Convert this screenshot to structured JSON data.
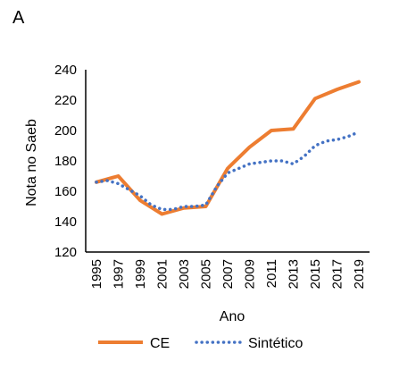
{
  "panel_label": "A",
  "chart_data": {
    "type": "line",
    "xlabel": "Ano",
    "ylabel": "Nota no Saeb",
    "ylim": [
      120,
      240
    ],
    "yticks": [
      120,
      140,
      160,
      180,
      200,
      220,
      240
    ],
    "xlim": [
      1995,
      2019
    ],
    "xticks": [
      "1995",
      "1997",
      "1999",
      "2001",
      "2003",
      "2005",
      "2007",
      "2009",
      "2011",
      "2013",
      "2015",
      "2017",
      "2019"
    ],
    "grid": false,
    "legend_position": "bottom",
    "series": [
      {
        "name": "CE",
        "color": "#ED7D31",
        "style": "solid",
        "x": [
          1995,
          1997,
          1999,
          2001,
          2003,
          2005,
          2007,
          2009,
          2011,
          2013,
          2015,
          2017,
          2019
        ],
        "y": [
          166,
          170,
          154,
          145,
          149,
          150,
          175,
          189,
          200,
          201,
          221,
          227,
          232
        ]
      },
      {
        "name": "Sintético",
        "color": "#4472C4",
        "style": "dotted",
        "x": [
          1995,
          1996,
          1997,
          1998,
          1999,
          2000,
          2001,
          2002,
          2003,
          2004,
          2005,
          2006,
          2007,
          2008,
          2009,
          2010,
          2011,
          2012,
          2013,
          2014,
          2015,
          2016,
          2017,
          2018,
          2019
        ],
        "y": [
          166,
          167,
          165,
          161,
          157,
          151,
          148,
          148,
          150,
          150,
          151,
          163,
          172,
          175,
          178,
          179,
          180,
          180,
          178,
          183,
          190,
          193,
          194,
          196,
          199
        ]
      }
    ]
  }
}
